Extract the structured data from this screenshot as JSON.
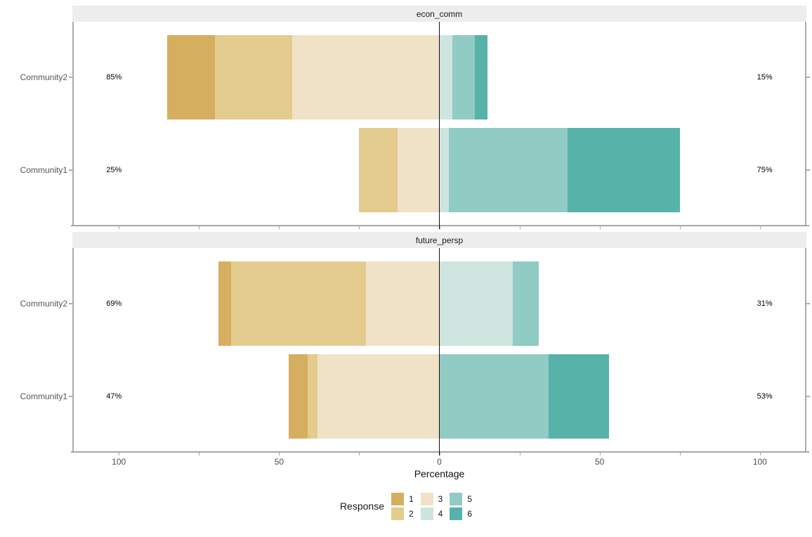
{
  "chart_data": {
    "type": "bar",
    "subtype": "diverging-stacked-likert",
    "title": "",
    "xlabel": "Percentage",
    "ylabel": "",
    "legend_title": "Response",
    "legend_position": "bottom",
    "grid": false,
    "x_axis": {
      "tick_values": [
        -100,
        -50,
        0,
        50,
        100
      ],
      "tick_labels": [
        "100",
        "50",
        "0",
        "50",
        "100"
      ],
      "minor_tick_step": 25,
      "range": [
        -114.5,
        114.5
      ]
    },
    "response_levels": [
      {
        "level": "1",
        "color": "#d6ae60"
      },
      {
        "level": "2",
        "color": "#e4cb8e"
      },
      {
        "level": "3",
        "color": "#f0e2c6"
      },
      {
        "level": "4",
        "color": "#cde4df"
      },
      {
        "level": "5",
        "color": "#90cbc4"
      },
      {
        "level": "6",
        "color": "#57b2aa"
      }
    ],
    "neutral_split_after_level": "3",
    "panels": [
      {
        "facet": "econ_comm",
        "rows": [
          {
            "group": "Community2",
            "left_total_label": "85%",
            "right_total_label": "15%",
            "values": [
              15,
              24,
              46,
              4,
              7,
              4
            ]
          },
          {
            "group": "Community1",
            "left_total_label": "25%",
            "right_total_label": "75%",
            "values": [
              0,
              12,
              13,
              3,
              37,
              35
            ]
          }
        ]
      },
      {
        "facet": "future_persp",
        "rows": [
          {
            "group": "Community2",
            "left_total_label": "69%",
            "right_total_label": "31%",
            "values": [
              4,
              42,
              23,
              23,
              8,
              0
            ]
          },
          {
            "group": "Community1",
            "left_total_label": "47%",
            "right_total_label": "53%",
            "values": [
              6,
              3,
              38,
              0,
              34,
              19
            ]
          }
        ]
      }
    ]
  },
  "colors": {
    "strip_bg": "#ededed",
    "panel_bg": "#ffffff",
    "axis_line": "#a6a6a6",
    "panel_border": "#acacac",
    "zero_line": "#111111",
    "axis_text": "#4d4d4d",
    "row_label_text": "#555555",
    "percent_text": "#000000",
    "background": "#ffffff"
  }
}
